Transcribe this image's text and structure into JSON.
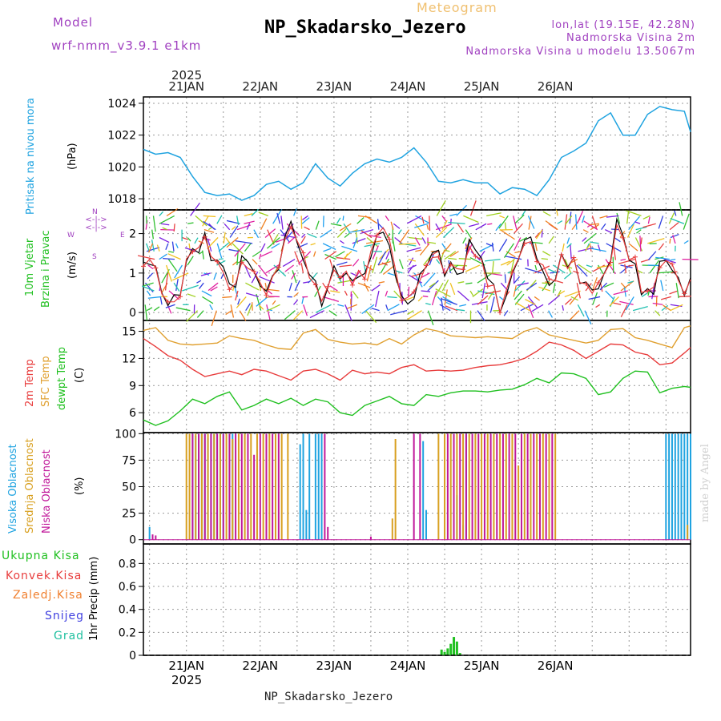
{
  "header": {
    "model_label": "Model",
    "model_name": "wrf-nmm_v3.9.1 e1km",
    "kind": "Meteogram",
    "station": "NP_Skadarsko_Jezero",
    "coords": "lon,lat (19.15E, 42.28N)",
    "elevation": "Nadmorska Visina 2m",
    "model_elevation": "Nadmorska Visina u modelu 13.5067m",
    "footer_station": "NP_Skadarsko_Jezero",
    "credit": "made by Angel"
  },
  "colors": {
    "pressure": "#1fa3e0",
    "temp2m": "#e83c3c",
    "sfc": "#e0a030",
    "dew": "#20c020",
    "high": "#1fa3e0",
    "mid": "#d8a020",
    "low": "#c0189a",
    "precip": "#20c020",
    "title_orange": "#f0c070",
    "purple": "#a040c0"
  },
  "chart_data": {
    "type": "line",
    "x_top_year": "2025",
    "x_bottom_year": "2025",
    "date_labels": [
      "21JAN",
      "22JAN",
      "23JAN",
      "24JAN",
      "25JAN",
      "26JAN"
    ],
    "x_hours_range": [
      -14,
      164
    ],
    "panels": {
      "pressure": {
        "label": "Pritisak na nivou mora",
        "unit": "(hPa)",
        "ylim": [
          1017.3,
          1024.4
        ],
        "ticks": [
          "1018",
          "1020",
          "1022",
          "1024"
        ],
        "tick_values": [
          1018,
          1020,
          1022,
          1024
        ],
        "series": [
          {
            "x": [
              -14,
              -10,
              -6,
              -2,
              2,
              6,
              10,
              14,
              18,
              22,
              26,
              30,
              34,
              38,
              42,
              46,
              50,
              54,
              58,
              62,
              66,
              70,
              74,
              78,
              82,
              86,
              90,
              94,
              98,
              102,
              106,
              110,
              114,
              118,
              122,
              126,
              130,
              134,
              138,
              142,
              146,
              150,
              154,
              158,
              162,
              164
            ],
            "y": [
              1021.1,
              1020.8,
              1020.9,
              1020.6,
              1019.4,
              1018.4,
              1018.2,
              1018.3,
              1017.9,
              1018.2,
              1018.9,
              1019.1,
              1018.6,
              1019.0,
              1020.2,
              1019.3,
              1018.8,
              1019.6,
              1020.2,
              1020.5,
              1020.3,
              1020.6,
              1021.2,
              1020.3,
              1019.1,
              1019.0,
              1019.2,
              1019.0,
              1019.0,
              1018.3,
              1018.7,
              1018.6,
              1018.2,
              1019.2,
              1020.6,
              1021.0,
              1021.5,
              1022.9,
              1023.4,
              1022.0,
              1022.0,
              1023.3,
              1023.8,
              1023.6,
              1023.5,
              1022.2
            ]
          }
        ]
      },
      "wind": {
        "label1": "10m Vjetar",
        "label2": "Brzina i Pravac",
        "unit": "(m/s)",
        "compass": "N",
        "compass_w": "W",
        "compass_e": "E",
        "compass_s": "S",
        "ylim": [
          -0.2,
          2.6
        ],
        "ticks": [
          "0",
          "1",
          "2"
        ],
        "tick_values": [
          0,
          1,
          2
        ]
      },
      "temperature": {
        "label_2m": "2m Temp",
        "label_sfc": "SFC Temp",
        "label_dew": "dewpt Temp",
        "unit": "(C)",
        "ylim": [
          3.8,
          16.2
        ],
        "ticks": [
          "6",
          "9",
          "12",
          "15"
        ],
        "tick_values": [
          6,
          9,
          12,
          15
        ],
        "series": [
          {
            "name": "SFC Temp",
            "x": [
              -14,
              -10,
              -6,
              -2,
              2,
              6,
              10,
              14,
              18,
              22,
              26,
              30,
              34,
              38,
              42,
              46,
              50,
              54,
              58,
              62,
              66,
              70,
              74,
              78,
              82,
              86,
              90,
              94,
              98,
              102,
              106,
              110,
              114,
              118,
              122,
              126,
              130,
              134,
              138,
              142,
              146,
              150,
              154,
              158,
              162,
              164
            ],
            "y": [
              15.1,
              15.4,
              14.0,
              13.6,
              13.5,
              13.6,
              13.7,
              14.5,
              14.2,
              14.0,
              13.5,
              13.1,
              13.0,
              14.8,
              15.2,
              14.1,
              13.8,
              13.6,
              13.7,
              13.5,
              14.2,
              13.6,
              14.6,
              15.3,
              15.0,
              14.5,
              14.4,
              14.3,
              14.4,
              14.3,
              14.2,
              15.0,
              15.4,
              14.6,
              14.3,
              14.0,
              13.7,
              14.0,
              15.2,
              15.3,
              14.3,
              14.0,
              13.6,
              13.2,
              15.4,
              15.6
            ]
          },
          {
            "name": "2m Temp",
            "x": [
              -14,
              -10,
              -6,
              -2,
              2,
              6,
              10,
              14,
              18,
              22,
              26,
              30,
              34,
              38,
              42,
              46,
              50,
              54,
              58,
              62,
              66,
              70,
              74,
              78,
              82,
              86,
              90,
              94,
              98,
              102,
              106,
              110,
              114,
              118,
              122,
              126,
              130,
              134,
              138,
              142,
              146,
              150,
              154,
              158,
              162,
              164
            ],
            "y": [
              14.2,
              13.3,
              12.3,
              11.8,
              10.8,
              10.0,
              10.3,
              10.6,
              10.2,
              10.8,
              10.6,
              10.1,
              9.6,
              10.6,
              10.8,
              10.3,
              9.6,
              10.7,
              10.3,
              10.5,
              10.3,
              11.0,
              11.3,
              10.6,
              10.7,
              10.6,
              10.7,
              11.0,
              11.2,
              11.3,
              11.6,
              12.0,
              12.8,
              13.8,
              13.5,
              12.9,
              12.0,
              12.8,
              13.6,
              13.5,
              12.7,
              12.4,
              11.3,
              11.5,
              12.6,
              13.2
            ]
          },
          {
            "name": "dewpt Temp",
            "x": [
              -14,
              -10,
              -6,
              -2,
              2,
              6,
              10,
              14,
              18,
              22,
              26,
              30,
              34,
              38,
              42,
              46,
              50,
              54,
              58,
              62,
              66,
              70,
              74,
              78,
              82,
              86,
              90,
              94,
              98,
              102,
              106,
              110,
              114,
              118,
              122,
              126,
              130,
              134,
              138,
              142,
              146,
              150,
              154,
              158,
              162,
              164
            ],
            "y": [
              5.2,
              4.6,
              5.1,
              6.2,
              7.5,
              7.0,
              7.8,
              8.3,
              6.3,
              6.8,
              7.5,
              7.0,
              7.6,
              6.8,
              7.5,
              7.2,
              6.0,
              5.7,
              6.8,
              7.3,
              7.8,
              7.0,
              6.8,
              8.0,
              7.8,
              8.2,
              8.4,
              8.4,
              8.3,
              8.5,
              8.6,
              9.1,
              9.8,
              9.3,
              10.4,
              10.3,
              9.8,
              8.0,
              8.3,
              9.8,
              10.6,
              10.5,
              8.2,
              8.7,
              8.9,
              8.8
            ]
          }
        ]
      },
      "clouds": {
        "label_high": "Visoka Oblacnost",
        "label_mid": "Srednja Oblacnost",
        "label_low": "Niska Oblacnost",
        "unit": "(%)",
        "ylim": [
          -4,
          101
        ],
        "ticks": [
          "0",
          "25",
          "50",
          "75",
          "100"
        ],
        "tick_values": [
          0,
          25,
          50,
          75,
          100
        ],
        "series": [
          {
            "name": "Visoka Oblacnost",
            "x": [
              -12,
              2,
              3,
              4,
              5,
              6,
              7,
              8,
              9,
              10,
              11,
              12,
              14,
              15,
              37,
              38,
              39,
              40,
              42,
              43,
              44,
              77,
              78,
              88,
              90,
              91,
              156,
              157,
              158,
              159,
              160,
              161,
              162,
              163,
              164
            ],
            "y": [
              12,
              100,
              98,
              100,
              100,
              100,
              96,
              100,
              100,
              100,
              100,
              100,
              100,
              100,
              90,
              100,
              28,
              100,
              100,
              100,
              100,
              93,
              28,
              42,
              14,
              100,
              100,
              100,
              100,
              100,
              100,
              100,
              100,
              100,
              100
            ]
          },
          {
            "name": "Srednja Oblacnost",
            "x": [
              0,
              1,
              3,
              5,
              7,
              9,
              11,
              13,
              15,
              17,
              19,
              21,
              23,
              25,
              27,
              29,
              31,
              33,
              67,
              68,
              82,
              84,
              86,
              88,
              90,
              92,
              94,
              96,
              98,
              100,
              102,
              104,
              106,
              108,
              110,
              112,
              114,
              116,
              118,
              120,
              163
            ],
            "y": [
              100,
              100,
              100,
              100,
              100,
              100,
              100,
              100,
              95,
              100,
              100,
              100,
              100,
              100,
              100,
              100,
              100,
              100,
              20,
              95,
              100,
              100,
              100,
              100,
              100,
              100,
              100,
              100,
              100,
              100,
              100,
              100,
              100,
              70,
              100,
              100,
              100,
              100,
              100,
              100,
              14
            ]
          },
          {
            "name": "Niska Oblacnost",
            "x": [
              -11,
              -10,
              2,
              4,
              6,
              8,
              10,
              12,
              14,
              16,
              18,
              20,
              22,
              24,
              26,
              28,
              30,
              45,
              46,
              60,
              74,
              76,
              85,
              87,
              89,
              91,
              93,
              95,
              97,
              99,
              101,
              103,
              105,
              107,
              109,
              111,
              113,
              115,
              117,
              119
            ],
            "y": [
              5,
              4,
              100,
              100,
              100,
              100,
              100,
              100,
              100,
              100,
              100,
              100,
              80,
              100,
              100,
              100,
              100,
              100,
              12,
              3,
              100,
              100,
              100,
              100,
              100,
              100,
              100,
              100,
              100,
              100,
              100,
              100,
              100,
              100,
              100,
              100,
              100,
              100,
              100,
              100
            ]
          }
        ]
      },
      "precip": {
        "label_total": "Ukupna Kisa",
        "label_conv": "Konvek.Kisa",
        "label_frozen": "Zaledj.Kisa",
        "label_snow": "Snijeg",
        "label_graupel": "Grad",
        "unit": "1hr Precip (mm)",
        "ylim": [
          0,
          0.97
        ],
        "ticks": [
          "0",
          "0.2",
          "0.4",
          "0.6",
          "0.8"
        ],
        "tick_values": [
          0,
          0.2,
          0.4,
          0.6,
          0.8
        ],
        "series": [
          {
            "name": "Ukupna Kisa",
            "x": [
              83,
              84,
              85,
              86,
              87,
              88,
              89
            ],
            "y": [
              0.05,
              0.03,
              0.06,
              0.1,
              0.16,
              0.12,
              0.02
            ]
          }
        ]
      }
    }
  }
}
